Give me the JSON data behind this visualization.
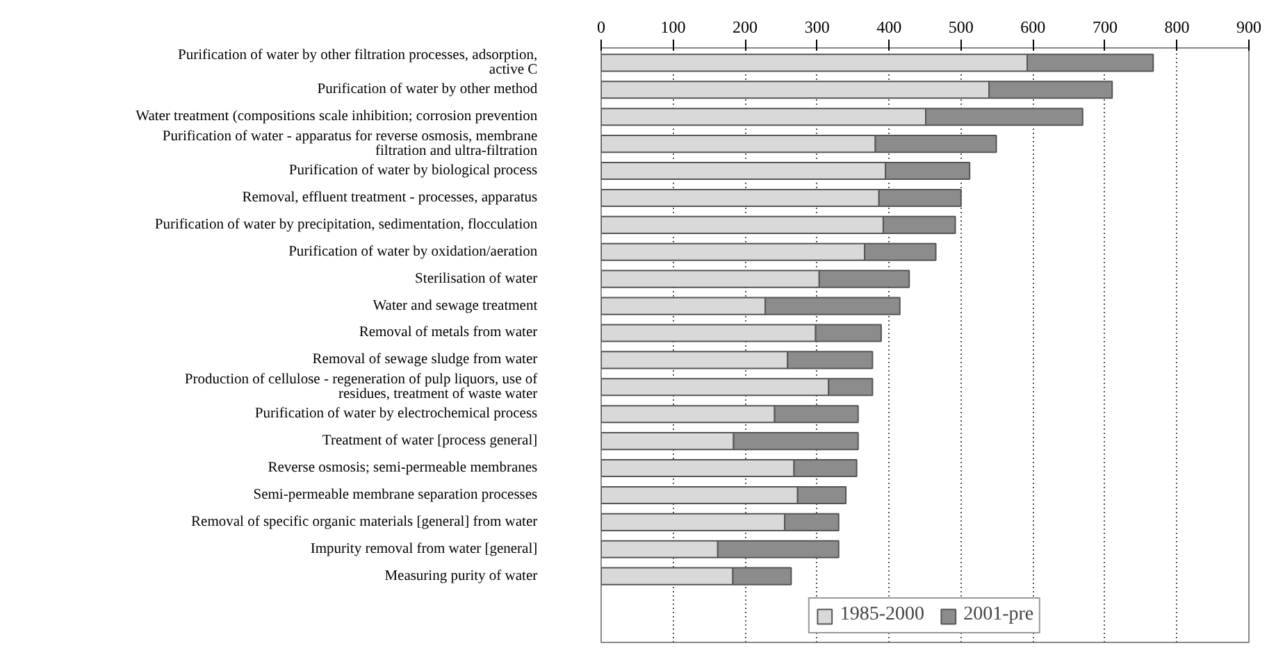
{
  "chart_data": {
    "type": "bar",
    "orientation": "horizontal",
    "stacked": true,
    "categories": [
      "Purification of water by other filtration processes, adsorption, active C",
      "Purification of water by other method",
      "Water treatment (compositions scale inhibition; corrosion prevention",
      "Purification of water - apparatus for reverse osmosis, membrane filtration and ultra-filtration",
      "Purification of water by biological process",
      "Removal, effluent treatment - processes, apparatus",
      "Purification of water by precipitation, sedimentation, flocculation",
      "Purification of water by oxidation/aeration",
      "Sterilisation of water",
      "Water and sewage treatment",
      "Removal of metals from water",
      "Removal of sewage sludge from water",
      "Production of cellulose - regeneration of pulp liquors, use of residues, treatment of waste water",
      "Purification of water by electrochemical process",
      "Treatment of water [process general]",
      "Reverse osmosis; semi-permeable membranes",
      "Semi-permeable membrane separation processes",
      "Removal of specific organic materials [general] from water",
      "Impurity removal from water [general]",
      "Measuring purity of water"
    ],
    "series": [
      {
        "name": "1985-2000",
        "color": "#d9d9d9",
        "values": [
          592,
          539,
          451,
          381,
          395,
          386,
          392,
          366,
          303,
          228,
          298,
          259,
          316,
          241,
          184,
          268,
          273,
          255,
          162,
          183
        ]
      },
      {
        "name": "2001-pre",
        "color": "#8c8c8c",
        "values": [
          175,
          171,
          218,
          168,
          117,
          114,
          100,
          99,
          125,
          187,
          91,
          118,
          61,
          116,
          173,
          87,
          67,
          75,
          168,
          81
        ]
      }
    ],
    "xlim": [
      0,
      900
    ],
    "xticks": [
      0,
      100,
      200,
      300,
      400,
      500,
      600,
      700,
      800,
      900
    ],
    "grid": "x",
    "legend": "bottom"
  }
}
